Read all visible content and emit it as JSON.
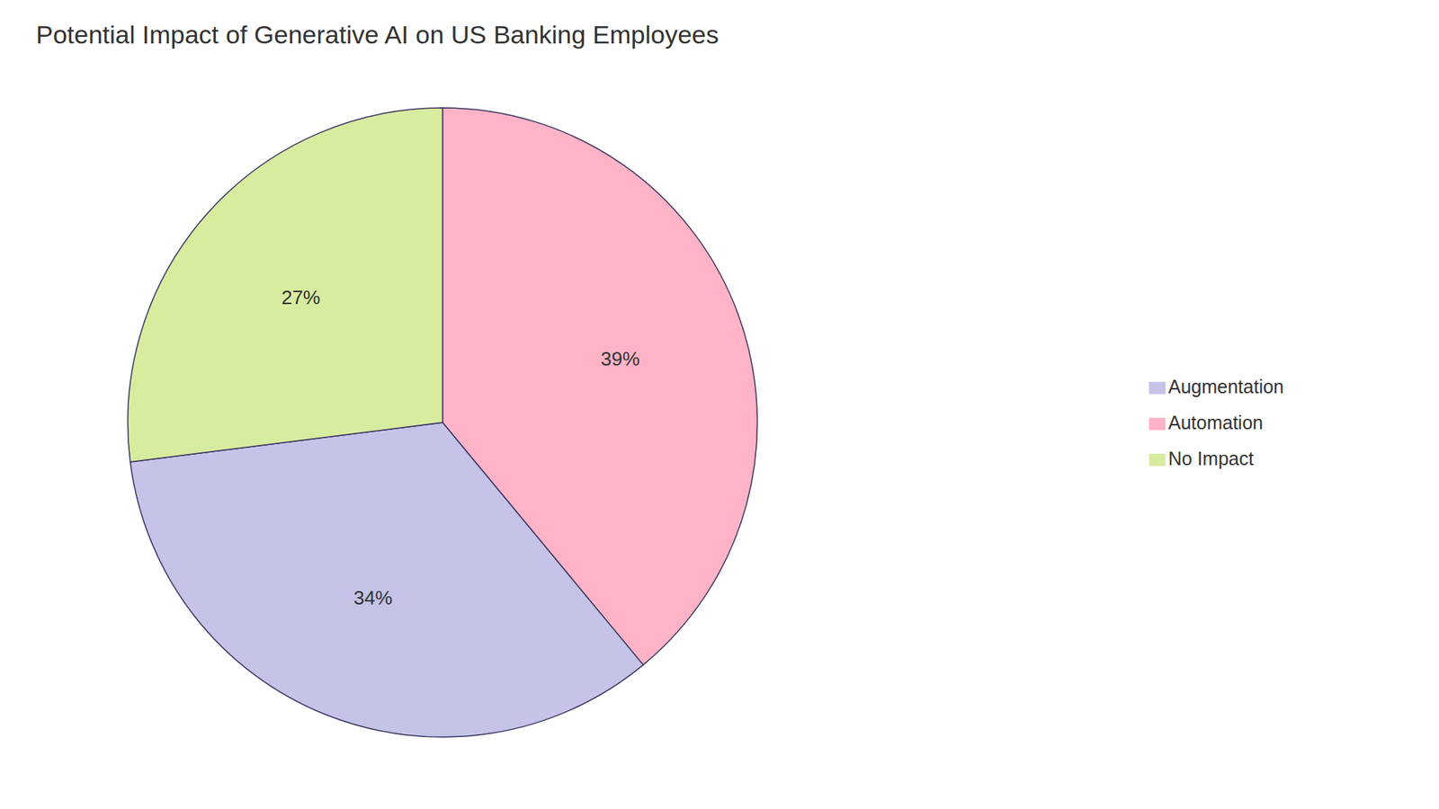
{
  "chart_data": {
    "type": "pie",
    "title": "Potential Impact of Generative AI on US Banking Employees",
    "categories": [
      "Automation",
      "Augmentation",
      "No Impact"
    ],
    "values": [
      39,
      34,
      27
    ],
    "value_labels": [
      "39%",
      "34%",
      "27%"
    ],
    "colors": [
      "#FFB3C6",
      "#C5C3E8",
      "#D8ECA0"
    ],
    "data_labels": true,
    "legend": "right"
  }
}
